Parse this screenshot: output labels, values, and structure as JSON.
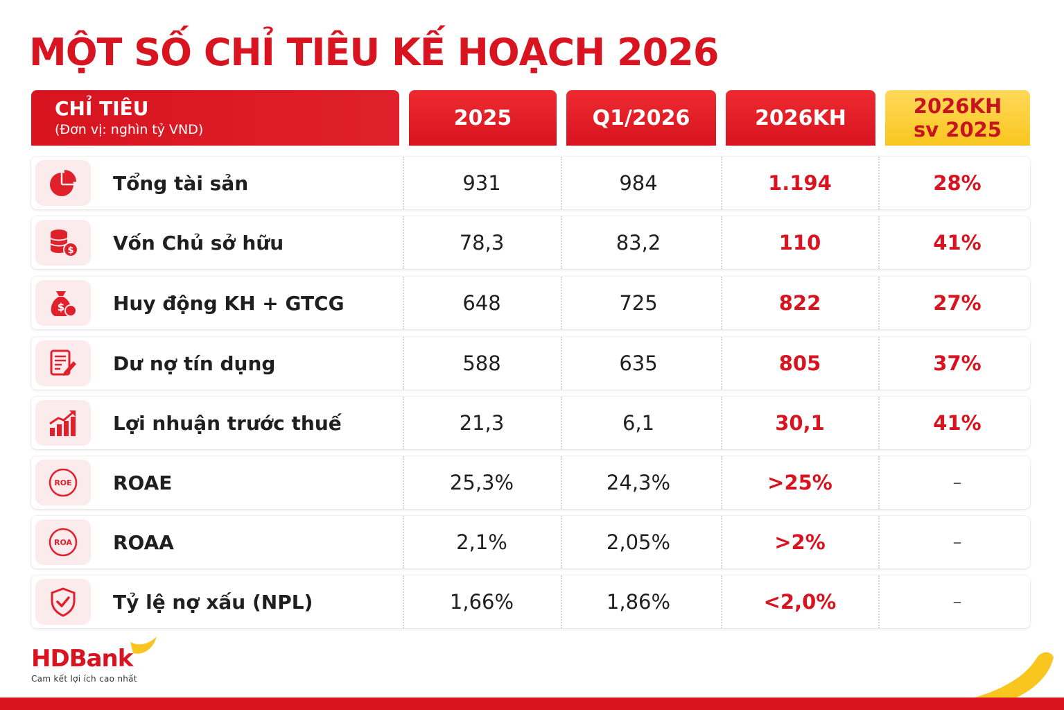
{
  "title": "MỘT SỐ CHỈ TIÊU KẾ HOẠCH 2026",
  "header": {
    "col0_title": "CHỈ TIÊU",
    "col0_unit": "(Đơn vị: nghìn tỷ VND)",
    "col1": "2025",
    "col2": "Q1/2026",
    "col3": "2026KH",
    "col4_line1": "2026KH",
    "col4_line2": "sv 2025"
  },
  "rows": [
    {
      "label": "Tổng tài sản",
      "icon": "pie-chart-icon",
      "v2025": "931",
      "q1_2026": "984",
      "kh2026": "1.194",
      "vs2025": "28%"
    },
    {
      "label": "Vốn Chủ sở hữu",
      "icon": "coins-icon",
      "v2025": "78,3",
      "q1_2026": "83,2",
      "kh2026": "110",
      "vs2025": "41%"
    },
    {
      "label": "Huy động KH + GTCG",
      "icon": "money-bag-icon",
      "v2025": "648",
      "q1_2026": "725",
      "kh2026": "822",
      "vs2025": "27%"
    },
    {
      "label": "Dư nợ tín dụng",
      "icon": "document-pen-icon",
      "v2025": "588",
      "q1_2026": "635",
      "kh2026": "805",
      "vs2025": "37%"
    },
    {
      "label": "Lợi nhuận trước thuế",
      "icon": "growth-chart-icon",
      "v2025": "21,3",
      "q1_2026": "6,1",
      "kh2026": "30,1",
      "vs2025": "41%"
    },
    {
      "label": "ROAE",
      "icon": "roe-icon",
      "icon_text": "ROE",
      "v2025": "25,3%",
      "q1_2026": "24,3%",
      "kh2026": ">25%",
      "vs2025": "–"
    },
    {
      "label": "ROAA",
      "icon": "roa-icon",
      "icon_text": "ROA",
      "v2025": "2,1%",
      "q1_2026": "2,05%",
      "kh2026": ">2%",
      "vs2025": "–"
    },
    {
      "label": "Tỷ lệ nợ xấu (NPL)",
      "icon": "shield-check-icon",
      "v2025": "1,66%",
      "q1_2026": "1,86%",
      "kh2026": "<2,0%",
      "vs2025": "–"
    }
  ],
  "logo": {
    "brand_hd": "HD",
    "brand_bank": "Bank",
    "tagline": "Cam kết lợi ích cao nhất"
  },
  "colors": {
    "brand_red": "#d7141f",
    "accent_yellow": "#f9c61f"
  }
}
